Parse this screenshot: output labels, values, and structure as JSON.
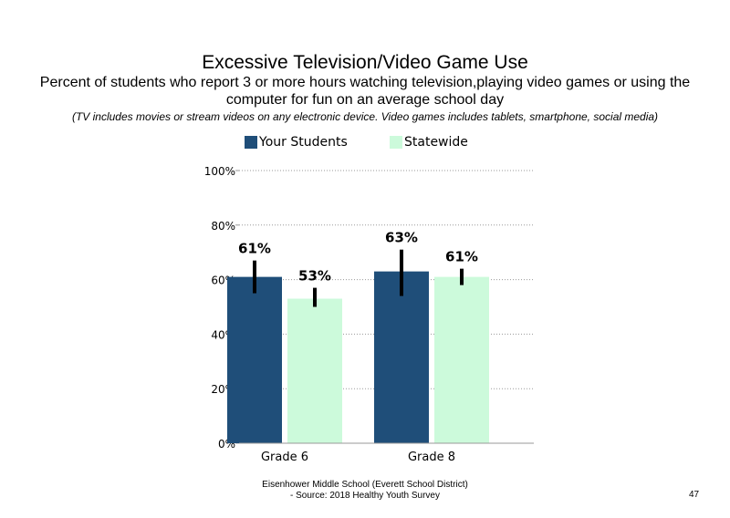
{
  "chart_data": {
    "type": "bar",
    "title": "Excessive Television/Video Game Use",
    "subtitle": "Percent of students  who report 3 or more hours watching television,playing video games or using the computer for fun on an average school day",
    "note": "(TV includes movies or stream videos on any electronic device. Video games includes tablets, smartphone, social media)",
    "categories": [
      "Grade 6",
      "Grade 8"
    ],
    "series": [
      {
        "name": "Your Students",
        "color": "#1f4e79",
        "values": [
          61,
          63
        ],
        "labels": [
          "61%",
          "63%"
        ],
        "error_low": [
          55,
          54
        ],
        "error_high": [
          67,
          71
        ]
      },
      {
        "name": "Statewide",
        "color": "#ccfadb",
        "values": [
          53,
          61
        ],
        "labels": [
          "53%",
          "61%"
        ],
        "error_low": [
          50,
          58
        ],
        "error_high": [
          57,
          64
        ]
      }
    ],
    "ylim": [
      0,
      100
    ],
    "yticks": [
      0,
      20,
      40,
      60,
      80,
      100
    ],
    "ytick_labels": [
      "0%",
      "20%",
      "40%",
      "60%",
      "80%",
      "100%"
    ],
    "grid": true,
    "legend": "top",
    "error_bar_color": "#000000"
  },
  "footer": {
    "line1": "Eisenhower Middle School (Everett School District)",
    "line2": "- Source: 2018 Healthy  Youth Survey"
  },
  "page_number": "47"
}
